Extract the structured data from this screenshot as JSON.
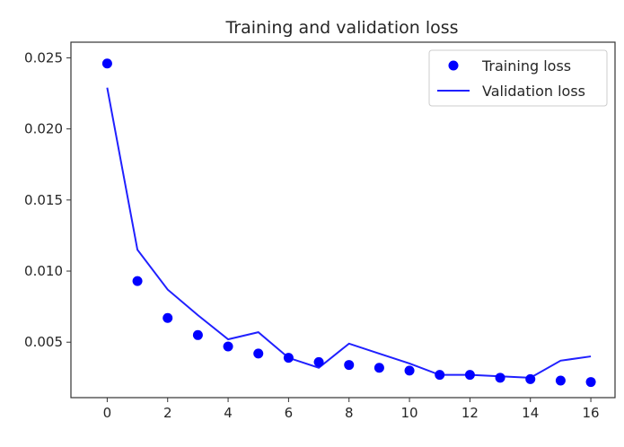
{
  "chart_data": {
    "type": "line",
    "title": "Training and validation loss",
    "xlabel": "",
    "ylabel": "",
    "xlim": [
      -1.2,
      16.8
    ],
    "ylim": [
      0.0011,
      0.0261
    ],
    "x_ticks": [
      0,
      2,
      4,
      6,
      8,
      10,
      12,
      14,
      16
    ],
    "y_ticks": [
      0.005,
      0.01,
      0.015,
      0.02,
      0.025
    ],
    "y_tick_labels": [
      "0.005",
      "0.010",
      "0.015",
      "0.020",
      "0.025"
    ],
    "grid": false,
    "legend_position": "top-right",
    "x": [
      0,
      1,
      2,
      3,
      4,
      5,
      6,
      7,
      8,
      9,
      10,
      11,
      12,
      13,
      14,
      15,
      16
    ],
    "series": [
      {
        "name": "Training loss",
        "style": "points",
        "color": "#0000ff",
        "values": [
          0.0246,
          0.0093,
          0.0067,
          0.0055,
          0.0047,
          0.0042,
          0.0039,
          0.0036,
          0.0034,
          0.0032,
          0.003,
          0.0027,
          0.0027,
          0.0025,
          0.0024,
          0.0023,
          0.0022
        ]
      },
      {
        "name": "Validation loss",
        "style": "line",
        "color": "#2020ff",
        "values": [
          0.0229,
          0.0115,
          0.0087,
          0.0069,
          0.0052,
          0.0057,
          0.0039,
          0.0032,
          0.0049,
          0.0042,
          0.0035,
          0.0027,
          0.0027,
          0.0026,
          0.0025,
          0.0037,
          0.004
        ]
      }
    ]
  }
}
